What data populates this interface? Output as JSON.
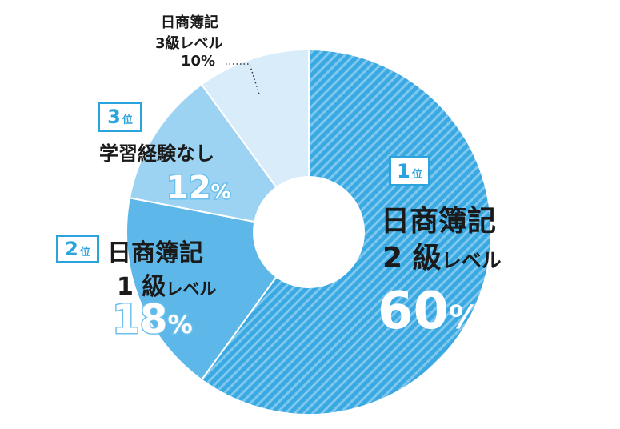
{
  "chart_data": {
    "type": "pie",
    "slices": [
      {
        "line1": "日商簿記",
        "line2_num": "2",
        "line2_a": "級",
        "line2_b": "レベル",
        "pct": "60",
        "unit": "%",
        "value": 60,
        "color": "#3aa9e2",
        "stripe": "#7ec8f0",
        "rank_num": "1",
        "rank_suf": "位"
      },
      {
        "line1": "日商簿記",
        "line2_num": "1",
        "line2_a": "級",
        "line2_b": "レベル",
        "pct": "18",
        "unit": "%",
        "value": 18,
        "color": "#5db7e8",
        "rank_num": "2",
        "rank_suf": "位"
      },
      {
        "line1": "学習経験なし",
        "pct": "12",
        "unit": "%",
        "value": 12,
        "color": "#9cd2f2",
        "rank_num": "3",
        "rank_suf": "位"
      },
      {
        "line1": "日商簿記",
        "line2": "3級レベル",
        "pct_text": "10%",
        "value": 10,
        "color": "#d8ecfa"
      }
    ]
  }
}
